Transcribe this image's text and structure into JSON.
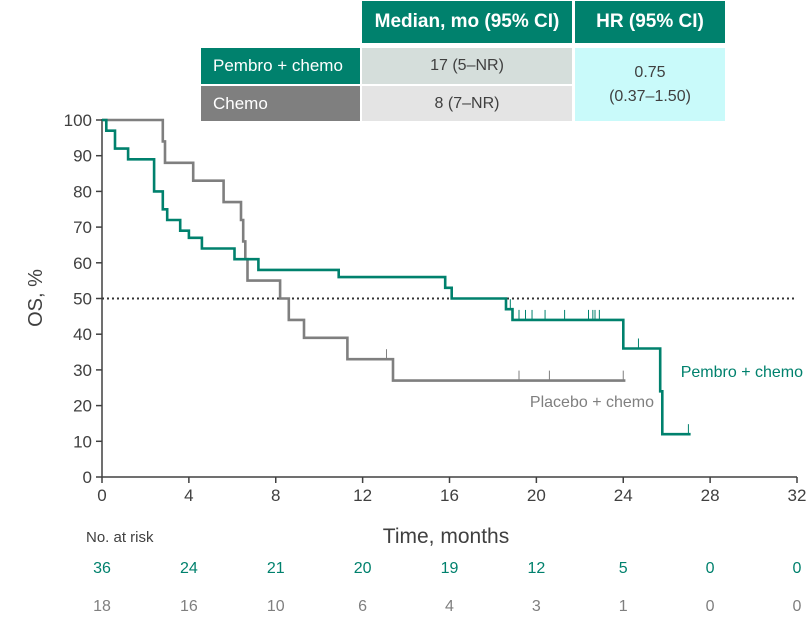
{
  "table": {
    "col_headers": [
      "Median, mo (95% CI)",
      "HR (95% CI)"
    ],
    "rows": [
      {
        "label": "Pembro + chemo",
        "median": "17 (5–NR)"
      },
      {
        "label": "Chemo",
        "median": "8 (7–NR)"
      }
    ],
    "hr_value": "0.75",
    "hr_ci": "(0.37–1.50)"
  },
  "colors": {
    "pembro": "#00816d",
    "chemo": "#7f7f7f",
    "median_fill_pembro": "#d5dedb",
    "median_fill_chemo": "#e4e4e4",
    "hr_fill": "#c9fafa"
  },
  "chart_data": {
    "type": "line",
    "subtype": "kaplan-meier step curve",
    "xlabel": "Time, months",
    "ylabel": "OS, %",
    "xlim": [
      0,
      32
    ],
    "ylim": [
      0,
      100
    ],
    "xticks": [
      0,
      4,
      8,
      12,
      16,
      20,
      24,
      28,
      32
    ],
    "yticks": [
      0,
      10,
      20,
      30,
      40,
      50,
      60,
      70,
      80,
      90,
      100
    ],
    "reference_line": {
      "y": 50,
      "style": "dotted"
    },
    "series": [
      {
        "name": "Pembro + chemo",
        "label_text": "Pembro + chemo",
        "color": "#00816d",
        "steps": [
          [
            0,
            100
          ],
          [
            0.2,
            97
          ],
          [
            0.6,
            92
          ],
          [
            1.2,
            89
          ],
          [
            2.4,
            80
          ],
          [
            2.8,
            75
          ],
          [
            3.0,
            72
          ],
          [
            3.6,
            69
          ],
          [
            4.0,
            67
          ],
          [
            4.6,
            64
          ],
          [
            6.1,
            61
          ],
          [
            7.2,
            58
          ],
          [
            10.9,
            56
          ],
          [
            15.8,
            53
          ],
          [
            16.1,
            50
          ],
          [
            18.6,
            47
          ],
          [
            18.9,
            44
          ],
          [
            24.0,
            36
          ],
          [
            25.7,
            24
          ],
          [
            25.8,
            12
          ],
          [
            27.1,
            12
          ]
        ],
        "censor_times": [
          18.8,
          19.2,
          19.5,
          19.8,
          20.4,
          21.3,
          22.4,
          22.6,
          22.7,
          22.9,
          24.7,
          27.0
        ]
      },
      {
        "name": "Placebo + chemo",
        "label_text": "Placebo + chemo",
        "color": "#7f7f7f",
        "steps": [
          [
            0,
            100
          ],
          [
            2.8,
            94
          ],
          [
            2.9,
            88
          ],
          [
            4.2,
            83
          ],
          [
            5.6,
            77
          ],
          [
            6.4,
            72
          ],
          [
            6.5,
            66
          ],
          [
            6.6,
            61
          ],
          [
            6.7,
            55
          ],
          [
            8.2,
            50
          ],
          [
            8.6,
            44
          ],
          [
            9.3,
            39
          ],
          [
            11.3,
            33
          ],
          [
            13.4,
            27
          ],
          [
            24.1,
            27
          ]
        ],
        "censor_times": [
          13.1,
          19.2,
          20.6,
          24.0
        ]
      }
    ],
    "at_risk": {
      "label": "No. at risk",
      "times": [
        0,
        4,
        8,
        12,
        16,
        20,
        24,
        28,
        32
      ],
      "pembro": [
        "36",
        "24",
        "21",
        "20",
        "19",
        "12",
        "5",
        "0",
        "0"
      ],
      "chemo": [
        "18",
        "16",
        "10",
        "6",
        "4",
        "3",
        "1",
        "0",
        "0"
      ]
    }
  }
}
